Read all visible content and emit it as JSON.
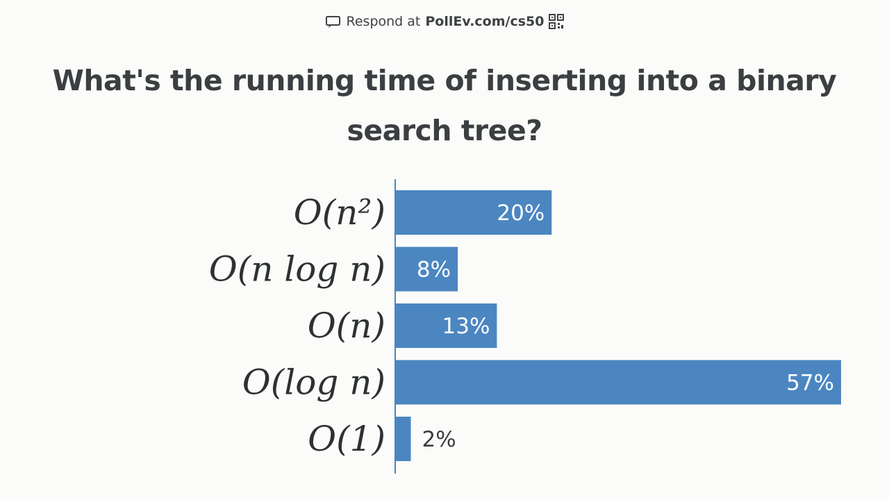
{
  "header": {
    "respond_prefix": "Respond at",
    "respond_url": "PollEv.com/cs50",
    "icons": [
      "chat-bubble-icon",
      "qr-code-icon"
    ]
  },
  "question": "What's the running time of inserting into a binary search tree?",
  "colors": {
    "bar": "#4b86c1",
    "axis": "#4b86c1",
    "label_inside": "#ffffff",
    "label_outside": "#3a3d3f",
    "background": "#fbfcf9"
  },
  "chart_data": {
    "type": "bar",
    "orientation": "horizontal",
    "categories": [
      "O(n²)",
      "O(n log n)",
      "O(n)",
      "O(log n)",
      "O(1)"
    ],
    "values": [
      20,
      8,
      13,
      57,
      2
    ],
    "value_labels": [
      "20%",
      "8%",
      "13%",
      "57%",
      "2%"
    ],
    "xlim": [
      0,
      57
    ],
    "grid": false,
    "legend": "none"
  }
}
